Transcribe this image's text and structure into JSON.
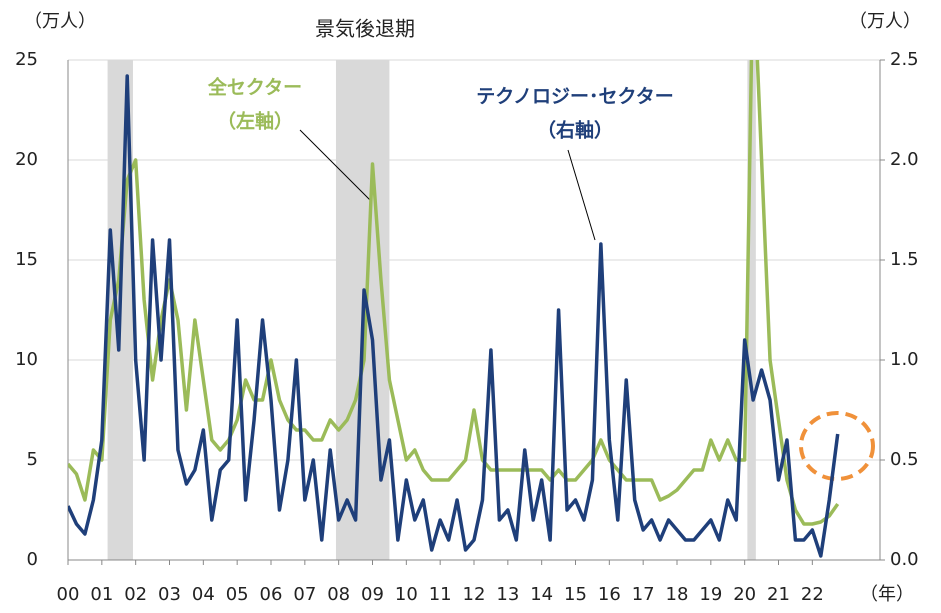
{
  "chart_data": {
    "type": "line",
    "y_unit": "（万人）",
    "y2_unit": "（万人）",
    "x_unit": "（年）",
    "recession_label": "景気後退期",
    "annotations": [
      "全セクター",
      "（左軸）",
      "テクノロジー･セクター",
      "（右軸）"
    ],
    "recessions": [
      [
        2001.17,
        2001.92
      ],
      [
        2007.92,
        2009.5
      ],
      [
        2020.08,
        2020.33
      ]
    ],
    "xlim": [
      2000,
      2024
    ],
    "xticks": [
      {
        "value": 2000,
        "label": "00"
      },
      {
        "value": 2001,
        "label": "01"
      },
      {
        "value": 2002,
        "label": "02"
      },
      {
        "value": 2003,
        "label": "03"
      },
      {
        "value": 2004,
        "label": "04"
      },
      {
        "value": 2005,
        "label": "05"
      },
      {
        "value": 2006,
        "label": "06"
      },
      {
        "value": 2007,
        "label": "07"
      },
      {
        "value": 2008,
        "label": "08"
      },
      {
        "value": 2009,
        "label": "09"
      },
      {
        "value": 2010,
        "label": "10"
      },
      {
        "value": 2011,
        "label": "11"
      },
      {
        "value": 2012,
        "label": "12"
      },
      {
        "value": 2013,
        "label": "13"
      },
      {
        "value": 2014,
        "label": "14"
      },
      {
        "value": 2015,
        "label": "15"
      },
      {
        "value": 2016,
        "label": "16"
      },
      {
        "value": 2017,
        "label": "17"
      },
      {
        "value": 2018,
        "label": "18"
      },
      {
        "value": 2019,
        "label": "19"
      },
      {
        "value": 2020,
        "label": "20"
      },
      {
        "value": 2021,
        "label": "21"
      },
      {
        "value": 2022,
        "label": "22"
      }
    ],
    "ylim": [
      0,
      25
    ],
    "yticks": [
      0,
      5,
      10,
      15,
      20,
      25
    ],
    "y2lim": [
      0,
      2.5
    ],
    "y2ticks": [
      {
        "value": 0,
        "label": "0.0"
      },
      0.5,
      {
        "value": 1,
        "label": "1.0"
      },
      1.5,
      {
        "value": 2,
        "label": "2.0"
      },
      2.5
    ],
    "grid": true,
    "x": [
      2000,
      2000.25,
      2000.5,
      2000.75,
      2001,
      2001.25,
      2001.5,
      2001.75,
      2002,
      2002.25,
      2002.5,
      2002.75,
      2003,
      2003.25,
      2003.5,
      2003.75,
      2004,
      2004.25,
      2004.5,
      2004.75,
      2005,
      2005.25,
      2005.5,
      2005.75,
      2006,
      2006.25,
      2006.5,
      2006.75,
      2007,
      2007.25,
      2007.5,
      2007.75,
      2008,
      2008.25,
      2008.5,
      2008.75,
      2009,
      2009.25,
      2009.5,
      2009.75,
      2010,
      2010.25,
      2010.5,
      2010.75,
      2011,
      2011.25,
      2011.5,
      2011.75,
      2012,
      2012.25,
      2012.5,
      2012.75,
      2013,
      2013.25,
      2013.5,
      2013.75,
      2014,
      2014.25,
      2014.5,
      2014.75,
      2015,
      2015.25,
      2015.5,
      2015.75,
      2016,
      2016.25,
      2016.5,
      2016.75,
      2017,
      2017.25,
      2017.5,
      2017.75,
      2018,
      2018.25,
      2018.5,
      2018.75,
      2019,
      2019.25,
      2019.5,
      2019.75,
      2020,
      2020.25,
      2020.5,
      2020.75,
      2021,
      2021.25,
      2021.5,
      2021.75,
      2022,
      2022.25,
      2022.5,
      2022.75
    ],
    "series": [
      {
        "name": "全セクター",
        "color": "#9bbb59",
        "axis": "y",
        "values": [
          4.8,
          4.3,
          3.0,
          5.5,
          5.0,
          12,
          14,
          19,
          20,
          13,
          9,
          12,
          14,
          12,
          7.5,
          12,
          9,
          6,
          5.5,
          6,
          7,
          9,
          8,
          8,
          10,
          8,
          7,
          6.5,
          6.5,
          6,
          6,
          7,
          6.5,
          7,
          8,
          10,
          19.8,
          14,
          9,
          7,
          5,
          5.5,
          4.5,
          4,
          4,
          4,
          4.5,
          5,
          7.5,
          5,
          4.5,
          4.5,
          4.5,
          4.5,
          4.5,
          4.5,
          4.5,
          4,
          4.5,
          4,
          4,
          4.5,
          5,
          6,
          5,
          4.5,
          4,
          4,
          4,
          4,
          3,
          3.2,
          3.5,
          4,
          4.5,
          4.5,
          6,
          5,
          6,
          5,
          5,
          30,
          20,
          10,
          7,
          4,
          2.5,
          1.8,
          1.8,
          1.9,
          2.2,
          2.8
        ]
      },
      {
        "name": "テクノロジー･セクター",
        "color": "#1f3f7a",
        "axis": "y2",
        "values": [
          0.27,
          0.18,
          0.13,
          0.3,
          0.6,
          1.65,
          1.05,
          2.42,
          1.0,
          0.5,
          1.6,
          1.0,
          1.6,
          0.55,
          0.38,
          0.45,
          0.65,
          0.2,
          0.45,
          0.5,
          1.2,
          0.3,
          0.7,
          1.2,
          0.8,
          0.25,
          0.5,
          1.0,
          0.3,
          0.5,
          0.1,
          0.55,
          0.2,
          0.3,
          0.2,
          1.35,
          1.1,
          0.4,
          0.6,
          0.1,
          0.4,
          0.2,
          0.3,
          0.05,
          0.2,
          0.1,
          0.3,
          0.05,
          0.1,
          0.3,
          1.05,
          0.2,
          0.25,
          0.1,
          0.55,
          0.2,
          0.4,
          0.1,
          1.25,
          0.25,
          0.3,
          0.2,
          0.4,
          1.58,
          0.6,
          0.2,
          0.9,
          0.3,
          0.15,
          0.2,
          0.1,
          0.2,
          0.15,
          0.1,
          0.1,
          0.15,
          0.2,
          0.1,
          0.3,
          0.2,
          1.1,
          0.8,
          0.95,
          0.8,
          0.4,
          0.6,
          0.1,
          0.1,
          0.15,
          0.02,
          0.3,
          0.63
        ]
      }
    ]
  }
}
